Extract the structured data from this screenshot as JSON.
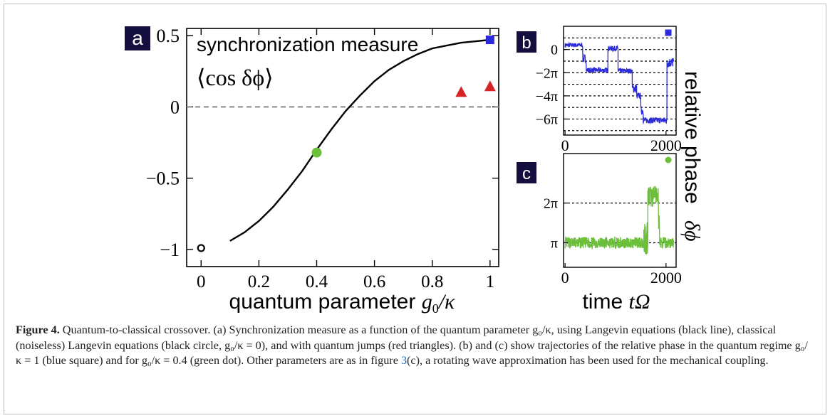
{
  "panels": {
    "a": {
      "label": "a",
      "title_line1": "synchronization measure",
      "title_line2": "⟨cos δϕ⟩",
      "xlabel_text": "quantum parameter ",
      "xlabel_math": "g",
      "xlabel_sub": "0",
      "xlabel_tail": "/κ"
    },
    "b": {
      "label": "b"
    },
    "c": {
      "label": "c"
    },
    "shared_ylabel": "relative phase",
    "shared_ylabel_math": "δϕ",
    "shared_xlabel_text": "time ",
    "shared_xlabel_math": "tΩ"
  },
  "chart_data": [
    {
      "panel": "a",
      "type": "line",
      "xlim": [
        -0.05,
        1.03
      ],
      "ylim": [
        -1.12,
        0.55
      ],
      "xticks": [
        0,
        0.2,
        0.4,
        0.6,
        0.8,
        1
      ],
      "xtick_labels": [
        "0",
        "0.2",
        "0.4",
        "0.6",
        "0.8",
        "1"
      ],
      "yticks": [
        -1,
        -0.5,
        0,
        0.5
      ],
      "ytick_labels": [
        "−1",
        "−0.5",
        "0",
        "0.5"
      ],
      "reference_line_y": 0,
      "series": [
        {
          "style": "line",
          "color": "#000000",
          "x": [
            0.1,
            0.15,
            0.2,
            0.25,
            0.3,
            0.35,
            0.4,
            0.45,
            0.5,
            0.55,
            0.6,
            0.65,
            0.7,
            0.75,
            0.8,
            0.85,
            0.9,
            0.95,
            1.0
          ],
          "y": [
            -0.94,
            -0.88,
            -0.8,
            -0.7,
            -0.58,
            -0.45,
            -0.3,
            -0.16,
            -0.03,
            0.08,
            0.18,
            0.26,
            0.32,
            0.37,
            0.41,
            0.43,
            0.45,
            0.46,
            0.47
          ]
        },
        {
          "style": "open-circle",
          "color": "#000000",
          "x": [
            0
          ],
          "y": [
            -0.99
          ]
        },
        {
          "style": "circle",
          "color": "#6bbf3a",
          "x": [
            0.4
          ],
          "y": [
            -0.32
          ]
        },
        {
          "style": "triangle",
          "color": "#d62424",
          "x": [
            0.9,
            1.0
          ],
          "y": [
            0.1,
            0.14
          ]
        },
        {
          "style": "square",
          "color": "#2b2bd9",
          "x": [
            1.0
          ],
          "y": [
            0.47
          ]
        }
      ]
    },
    {
      "panel": "b",
      "type": "line",
      "xlim": [
        -30,
        2200
      ],
      "ylim": [
        -23.2,
        6.3
      ],
      "xticks": [
        0,
        2000
      ],
      "xtick_labels": [
        "0",
        "2000"
      ],
      "yticks": [
        0,
        -6.2832,
        -12.5664,
        -18.8496
      ],
      "ytick_labels": [
        "0",
        "−2π",
        "−4π",
        "−6π"
      ],
      "grid_y": [
        3.1416,
        0,
        -3.1416,
        -6.2832,
        -9.4248,
        -12.5664,
        -15.708,
        -18.8496,
        -21.9911
      ],
      "color": "#2b2bd9",
      "marker": "square",
      "segments": [
        {
          "x0": 0,
          "x1": 350,
          "level": 1.2,
          "noise": 0.6
        },
        {
          "x0": 350,
          "x1": 420,
          "level": -2.5,
          "noise": 1.2
        },
        {
          "x0": 420,
          "x1": 850,
          "level": -5.6,
          "noise": 0.7
        },
        {
          "x0": 850,
          "x1": 1050,
          "level": 0.3,
          "noise": 0.7
        },
        {
          "x0": 1050,
          "x1": 1330,
          "level": -5.8,
          "noise": 0.7
        },
        {
          "x0": 1330,
          "x1": 1420,
          "level": -10.5,
          "noise": 1.3
        },
        {
          "x0": 1420,
          "x1": 1500,
          "level": -12.6,
          "noise": 0.8
        },
        {
          "x0": 1500,
          "x1": 1550,
          "level": -16.5,
          "noise": 1.2
        },
        {
          "x0": 1550,
          "x1": 2020,
          "level": -19.2,
          "noise": 0.8
        },
        {
          "x0": 2020,
          "x1": 2150,
          "level": -3.5,
          "noise": 1.4
        }
      ]
    },
    {
      "panel": "c",
      "type": "line",
      "xlim": [
        -30,
        2200
      ],
      "ylim": [
        1.2,
        10.2
      ],
      "xticks": [
        0,
        2000
      ],
      "xtick_labels": [
        "0",
        "2000"
      ],
      "yticks": [
        3.1416,
        6.2832
      ],
      "ytick_labels": [
        "π",
        "2π"
      ],
      "grid_y": [
        3.1416,
        6.2832
      ],
      "color": "#6bbf3a",
      "marker": "circle",
      "segments": [
        {
          "x0": 0,
          "x1": 1560,
          "level": 3.1416,
          "noise": 0.45
        },
        {
          "x0": 1560,
          "x1": 1640,
          "level": 3.6,
          "noise": 1.4
        },
        {
          "x0": 1640,
          "x1": 1850,
          "level": 6.8,
          "noise": 0.85
        },
        {
          "x0": 1850,
          "x1": 1880,
          "level": 4.5,
          "noise": 1.8
        },
        {
          "x0": 1880,
          "x1": 2150,
          "level": 3.1416,
          "noise": 0.45
        }
      ]
    }
  ],
  "caption": {
    "fig_label": "Figure 4.",
    "text": " Quantum-to-classical crossover. (a) Synchronization measure as a function of the quantum parameter g₀/κ, using Langevin equations (black line), classical (noiseless) Langevin equations (black circle, g₀/κ = 0), and with quantum jumps (red triangles). (b) and (c) show trajectories of the relative phase in the quantum regime g₀/κ = 1 (blue square) and for g₀/κ = 0.4 (green dot). Other parameters are as in figure ",
    "ref": "3",
    "tail": "(c), a rotating wave approximation has been used for the mechanical coupling."
  }
}
